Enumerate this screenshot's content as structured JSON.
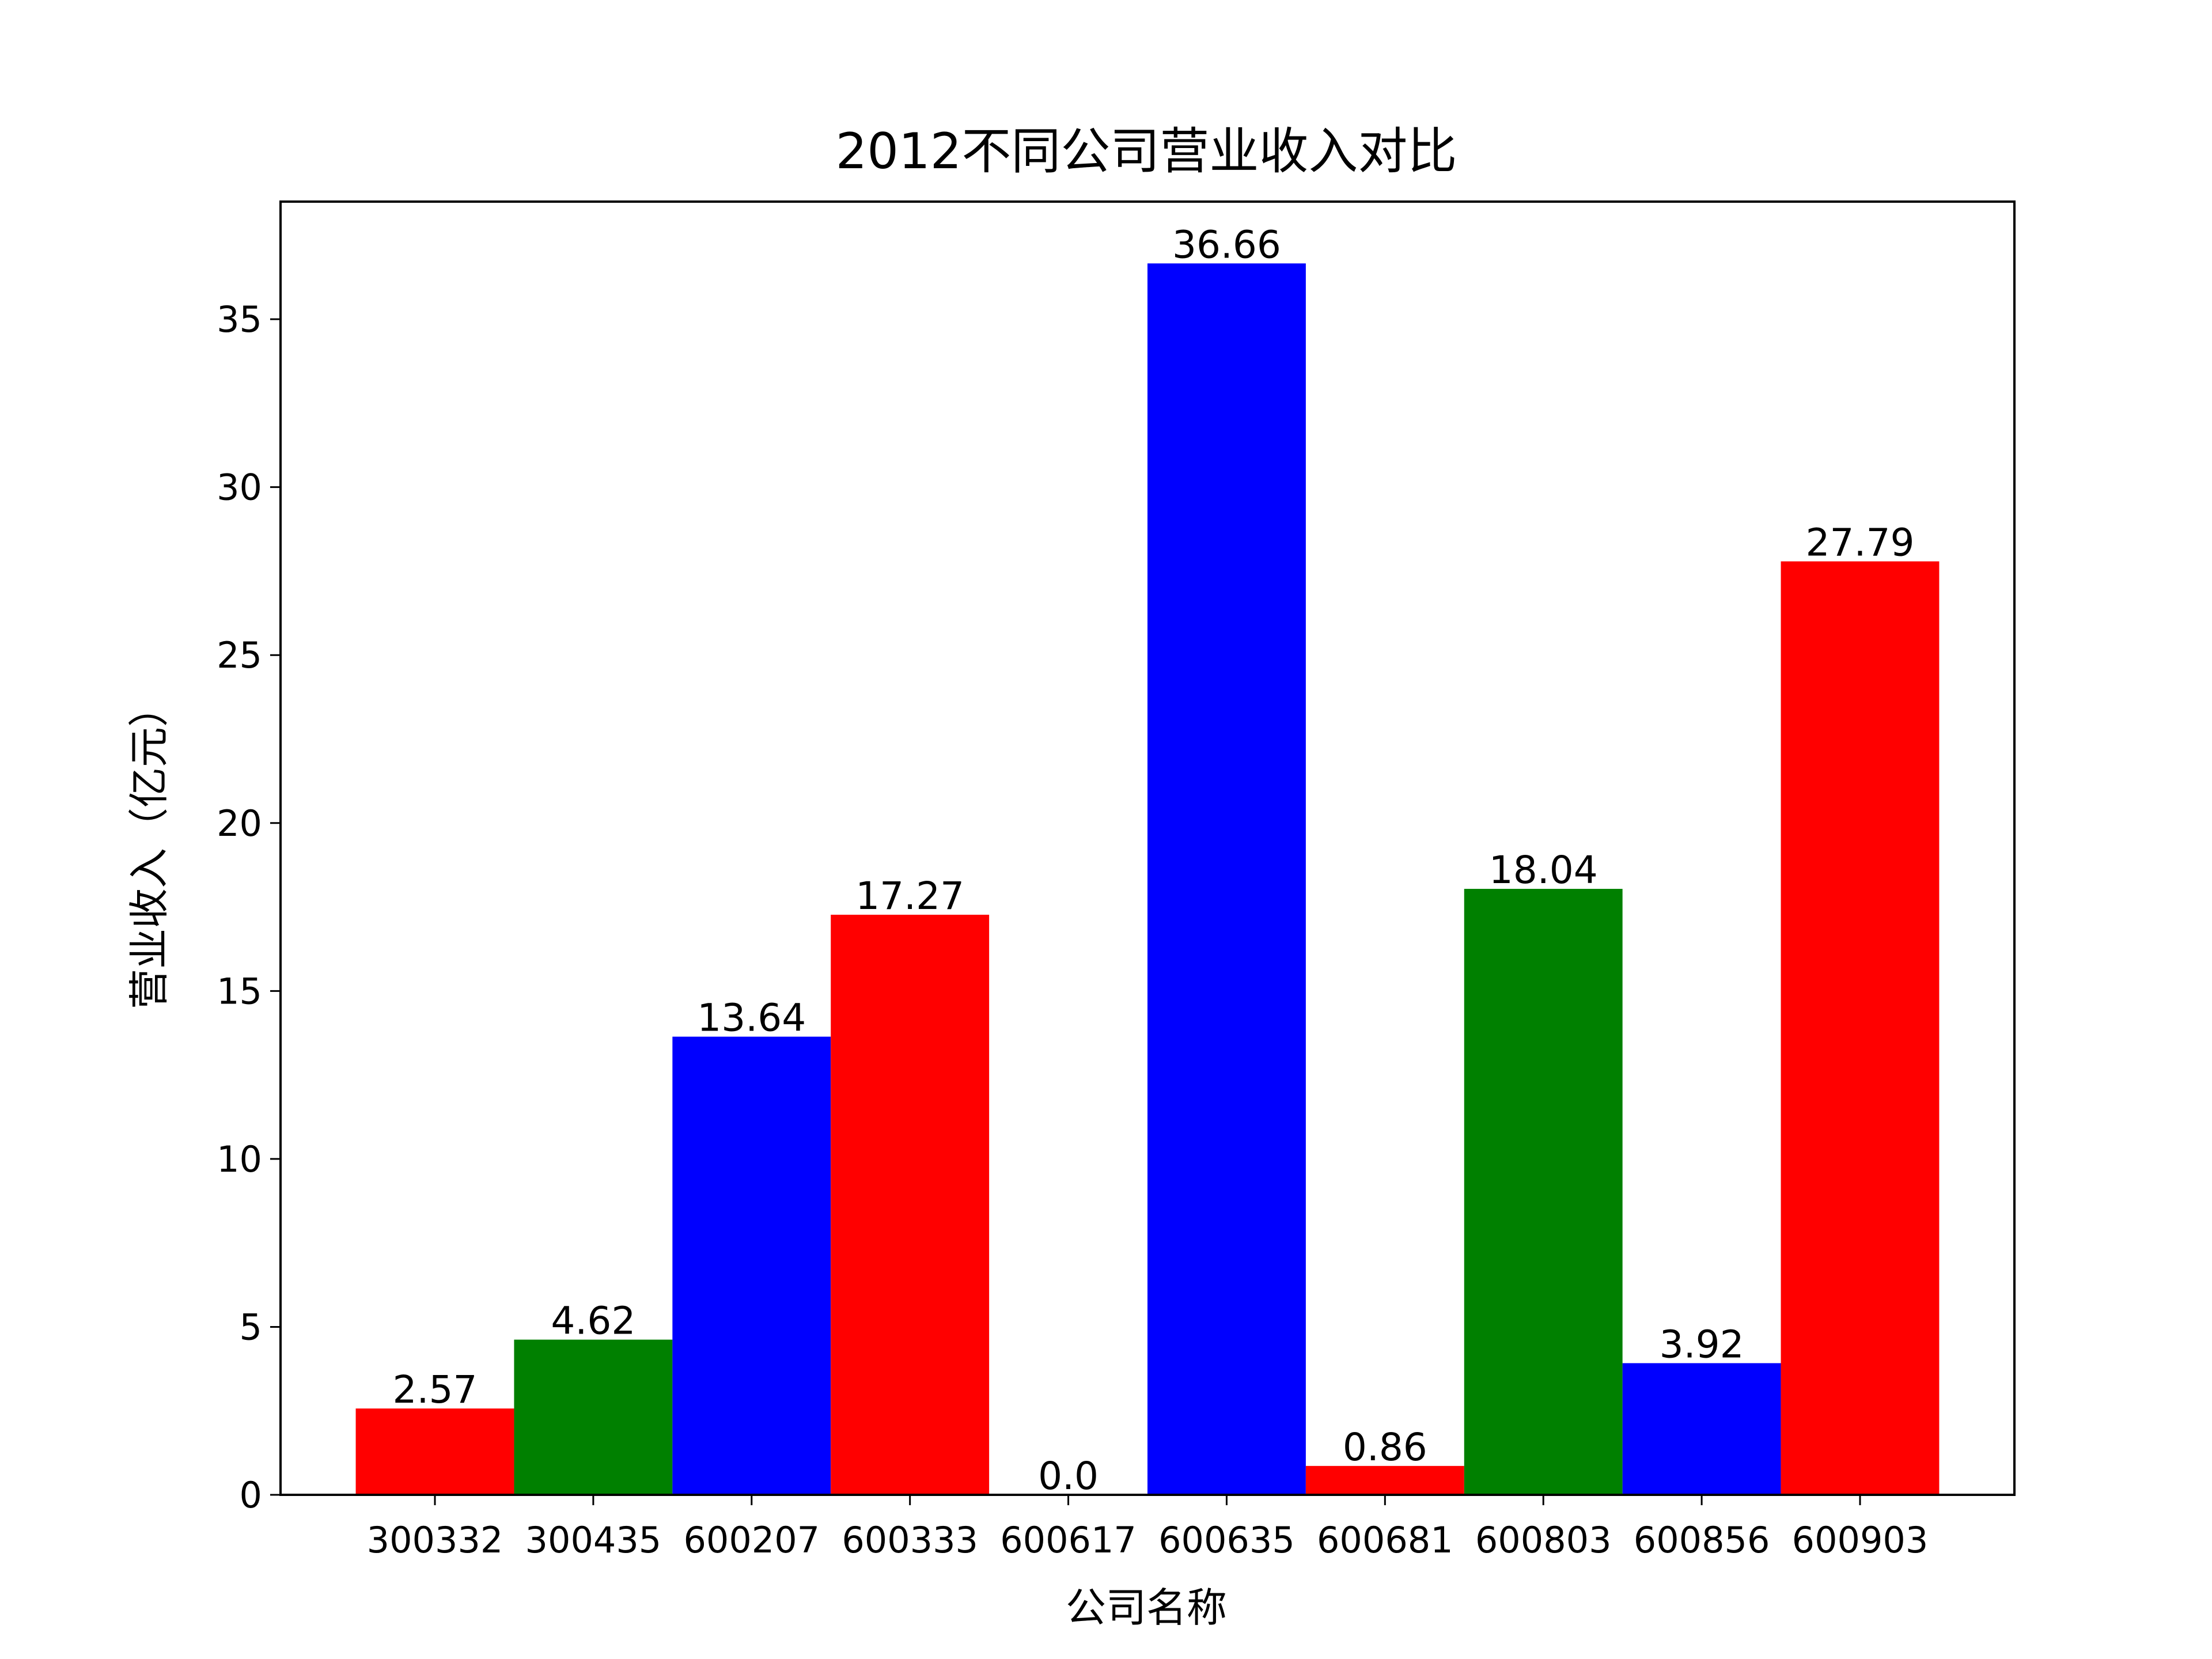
{
  "chart_data": {
    "type": "bar",
    "title": "2012不同公司营业收入对比",
    "xlabel": "公司名称",
    "ylabel": "营业收入（亿元）",
    "categories": [
      "300332",
      "300435",
      "600207",
      "600333",
      "600617",
      "600635",
      "600681",
      "600803",
      "600856",
      "600903"
    ],
    "values": [
      2.57,
      4.62,
      13.64,
      17.27,
      0.0,
      36.66,
      0.86,
      18.04,
      3.92,
      27.79
    ],
    "value_labels": [
      "2.57",
      "4.62",
      "13.64",
      "17.27",
      "0.0",
      "36.66",
      "0.86",
      "18.04",
      "3.92",
      "27.79"
    ],
    "bar_colors": [
      "#ff0000",
      "#008000",
      "#0000ff",
      "#ff0000",
      "#008000",
      "#0000ff",
      "#ff0000",
      "#008000",
      "#0000ff",
      "#ff0000"
    ],
    "ylim": [
      0,
      38.5
    ],
    "yticks": [
      0,
      5,
      10,
      15,
      20,
      25,
      30,
      35
    ],
    "grid": false,
    "legend": "none"
  }
}
